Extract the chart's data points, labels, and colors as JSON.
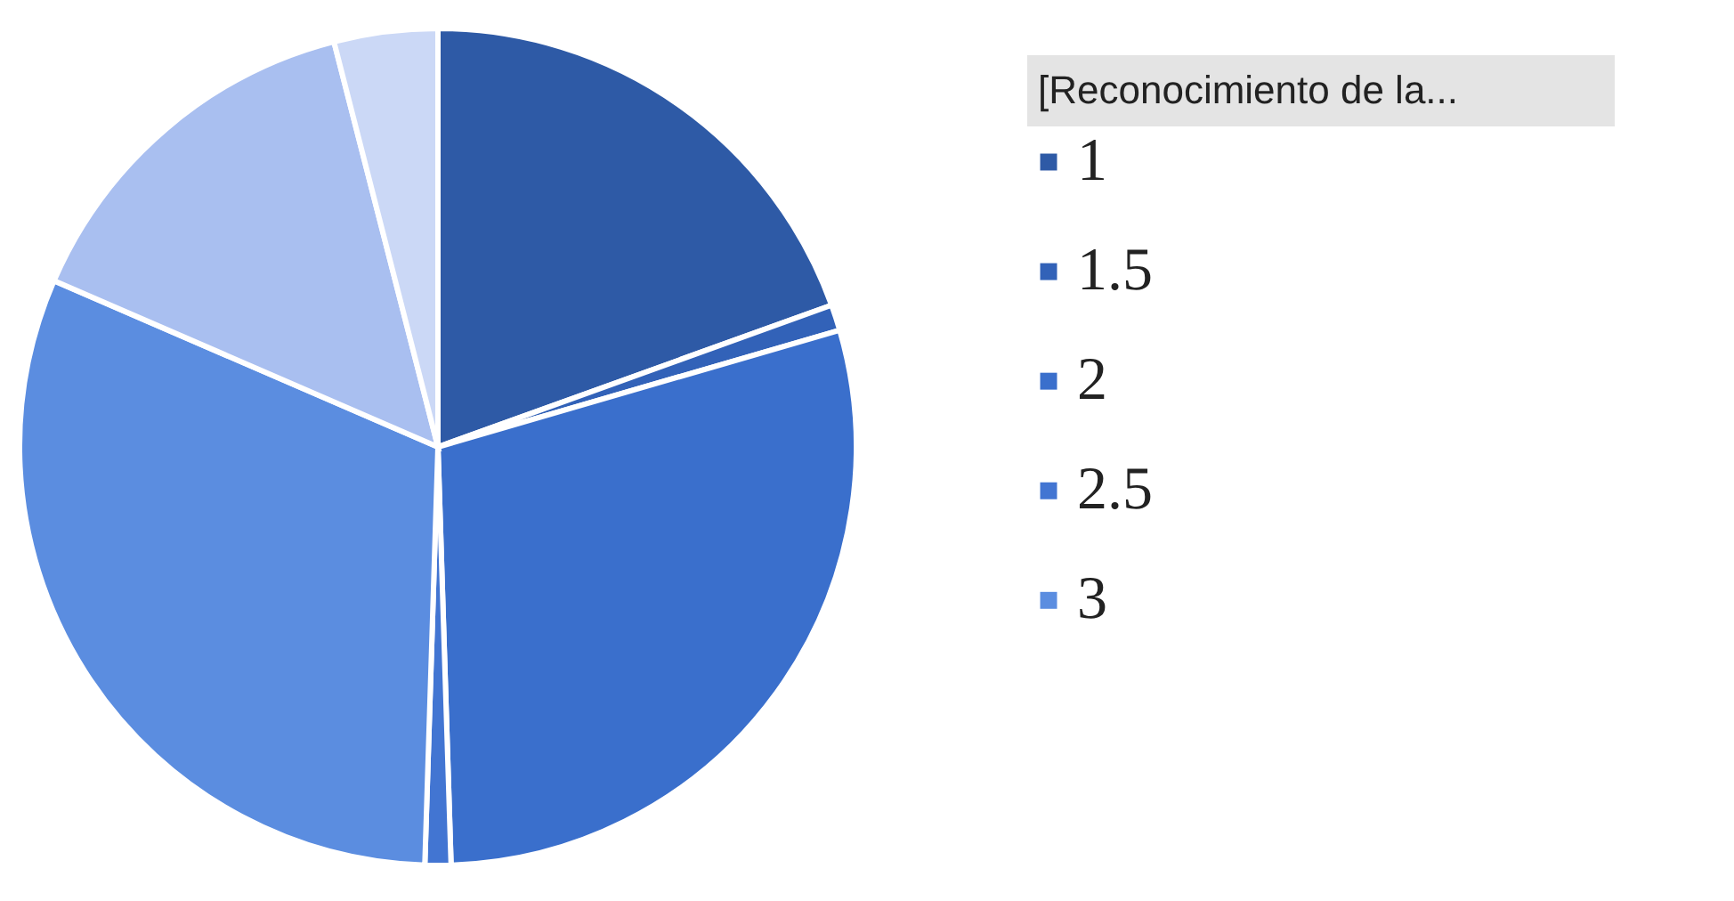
{
  "chart_data": {
    "type": "pie",
    "legend_title": "[Reconocimiento de la...",
    "legend": "right",
    "categories": [
      "1",
      "1.5",
      "2",
      "2.5",
      "3",
      null,
      null
    ],
    "values": [
      19.5,
      1,
      29,
      1,
      31,
      14.5,
      4
    ],
    "colors": [
      "#2e5aa6",
      "#3262b8",
      "#3a6fcc",
      "#4275d2",
      "#5b8de0",
      "#a9bff0",
      "#cbd8f6"
    ]
  }
}
